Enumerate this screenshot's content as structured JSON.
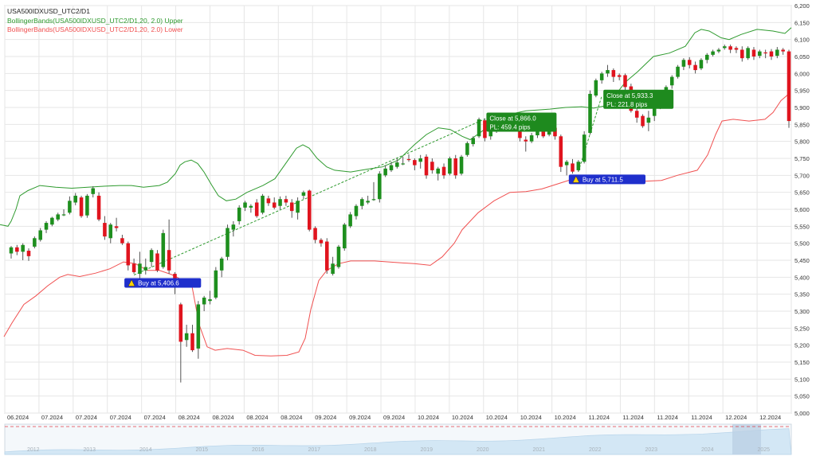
{
  "legend": {
    "symbol_title": "USA500IDXUSD_UTC2/D1",
    "upper_band_label": "BollingerBands(USA500IDXUSD_UTC2/D1,20, 2.0) Upper",
    "lower_band_label": "BollingerBands(USA500IDXUSD_UTC2/D1,20, 2.0) Lower"
  },
  "colors": {
    "bull": "#1e8f1e",
    "bear": "#e0141e",
    "upper_band": "#2e9a2e",
    "lower_band": "#f05050",
    "trade_line": "#2e9a2e",
    "buy_bg": "#1f2fcc",
    "close_bg": "#1e8a1e",
    "grid": "#e6e6e6"
  },
  "chart_data": {
    "type": "candlestick",
    "y_axis": {
      "min": 5000,
      "max": 6200,
      "step": 50,
      "labels": [
        "5,000",
        "5,050",
        "5,100",
        "5,150",
        "5,200",
        "5,250",
        "5,300",
        "5,350",
        "5,400",
        "5,450",
        "5,500",
        "5,550",
        "5,600",
        "5,650",
        "5,700",
        "5,750",
        "5,800",
        "5,850",
        "5,900",
        "5,950",
        "6,000",
        "6,050",
        "6,100",
        "6,150",
        "6,200"
      ]
    },
    "x_tick_labels": [
      "06.2024",
      "07.2024",
      "07.2024",
      "07.2024",
      "07.2024",
      "08.2024",
      "08.2024",
      "08.2024",
      "08.2024",
      "09.2024",
      "09.2024",
      "09.2024",
      "10.2024",
      "10.2024",
      "10.2024",
      "10.2024",
      "10.2024",
      "11.2024",
      "11.2024",
      "11.2024",
      "11.2024",
      "12.2024",
      "12.2024"
    ],
    "candles": [
      [
        5470,
        5488,
        5455,
        5492
      ],
      [
        5488,
        5475,
        5465,
        5495
      ],
      [
        5475,
        5495,
        5450,
        5500
      ],
      [
        5478,
        5462,
        5448,
        5485
      ],
      [
        5490,
        5515,
        5485,
        5520
      ],
      [
        5510,
        5538,
        5505,
        5545
      ],
      [
        5540,
        5560,
        5530,
        5565
      ],
      [
        5555,
        5575,
        5550,
        5578
      ],
      [
        5570,
        5585,
        5565,
        5590
      ],
      [
        5585,
        5585,
        5580,
        5600
      ],
      [
        5590,
        5625,
        5585,
        5638
      ],
      [
        5620,
        5640,
        5612,
        5648
      ],
      [
        5635,
        5580,
        5575,
        5640
      ],
      [
        5582,
        5640,
        5575,
        5645
      ],
      [
        5645,
        5662,
        5635,
        5668
      ],
      [
        5640,
        5570,
        5565,
        5650
      ],
      [
        5560,
        5520,
        5510,
        5580
      ],
      [
        5515,
        5555,
        5500,
        5560
      ],
      [
        5550,
        5545,
        5535,
        5575
      ],
      [
        5515,
        5500,
        5495,
        5525
      ],
      [
        5500,
        5435,
        5420,
        5505
      ],
      [
        5440,
        5415,
        5410,
        5455
      ],
      [
        5410,
        5440,
        5395,
        5475
      ],
      [
        5420,
        5430,
        5408,
        5455
      ],
      [
        5445,
        5480,
        5430,
        5485
      ],
      [
        5470,
        5420,
        5415,
        5480
      ],
      [
        5430,
        5530,
        5425,
        5540
      ],
      [
        5480,
        5420,
        5410,
        5570
      ],
      [
        5410,
        5375,
        5350,
        5415
      ],
      [
        5320,
        5210,
        5090,
        5325
      ],
      [
        5215,
        5235,
        5195,
        5260
      ],
      [
        5235,
        5185,
        5180,
        5260
      ],
      [
        5190,
        5320,
        5160,
        5330
      ],
      [
        5320,
        5340,
        5300,
        5345
      ],
      [
        5330,
        5335,
        5320,
        5360
      ],
      [
        5340,
        5420,
        5335,
        5430
      ],
      [
        5420,
        5455,
        5400,
        5460
      ],
      [
        5460,
        5545,
        5450,
        5555
      ],
      [
        5540,
        5555,
        5520,
        5565
      ],
      [
        5565,
        5605,
        5555,
        5612
      ],
      [
        5605,
        5620,
        5595,
        5625
      ],
      [
        5605,
        5610,
        5590,
        5615
      ],
      [
        5620,
        5580,
        5575,
        5630
      ],
      [
        5590,
        5640,
        5585,
        5645
      ],
      [
        5632,
        5618,
        5610,
        5640
      ],
      [
        5620,
        5605,
        5600,
        5635
      ],
      [
        5610,
        5630,
        5600,
        5638
      ],
      [
        5630,
        5620,
        5610,
        5640
      ],
      [
        5620,
        5595,
        5575,
        5630
      ],
      [
        5590,
        5625,
        5570,
        5635
      ],
      [
        5640,
        5650,
        5630,
        5655
      ],
      [
        5655,
        5540,
        5535,
        5658
      ],
      [
        5545,
        5510,
        5500,
        5550
      ],
      [
        5510,
        5500,
        5490,
        5515
      ],
      [
        5505,
        5420,
        5410,
        5515
      ],
      [
        5410,
        5440,
        5405,
        5460
      ],
      [
        5430,
        5490,
        5425,
        5495
      ],
      [
        5485,
        5555,
        5478,
        5560
      ],
      [
        5550,
        5585,
        5545,
        5592
      ],
      [
        5580,
        5610,
        5570,
        5615
      ],
      [
        5610,
        5630,
        5600,
        5635
      ],
      [
        5620,
        5625,
        5615,
        5640
      ],
      [
        5630,
        5630,
        5625,
        5680
      ],
      [
        5630,
        5705,
        5620,
        5712
      ],
      [
        5700,
        5720,
        5695,
        5730
      ],
      [
        5715,
        5730,
        5710,
        5740
      ],
      [
        5725,
        5738,
        5720,
        5750
      ],
      [
        5735,
        5735,
        5730,
        5755
      ],
      [
        5748,
        5745,
        5740,
        5762
      ],
      [
        5745,
        5730,
        5715,
        5750
      ],
      [
        5740,
        5750,
        5720,
        5760
      ],
      [
        5755,
        5700,
        5690,
        5762
      ],
      [
        5740,
        5715,
        5705,
        5750
      ],
      [
        5705,
        5720,
        5685,
        5725
      ],
      [
        5725,
        5700,
        5690,
        5735
      ],
      [
        5705,
        5750,
        5700,
        5755
      ],
      [
        5750,
        5700,
        5690,
        5760
      ],
      [
        5705,
        5755,
        5700,
        5760
      ],
      [
        5760,
        5795,
        5755,
        5800
      ],
      [
        5792,
        5810,
        5785,
        5815
      ],
      [
        5815,
        5865,
        5810,
        5870
      ],
      [
        5862,
        5810,
        5800,
        5868
      ],
      [
        5815,
        5840,
        5805,
        5848
      ],
      [
        5835,
        5845,
        5825,
        5850
      ],
      [
        5845,
        5870,
        5840,
        5875
      ],
      [
        5862,
        5860,
        5855,
        5870
      ],
      [
        5860,
        5850,
        5840,
        5868
      ],
      [
        5850,
        5810,
        5800,
        5862
      ],
      [
        5805,
        5800,
        5770,
        5815
      ],
      [
        5800,
        5818,
        5795,
        5825
      ],
      [
        5818,
        5840,
        5810,
        5845
      ],
      [
        5840,
        5815,
        5810,
        5850
      ],
      [
        5820,
        5840,
        5815,
        5848
      ],
      [
        5840,
        5815,
        5805,
        5848
      ],
      [
        5815,
        5725,
        5710,
        5820
      ],
      [
        5730,
        5740,
        5700,
        5745
      ],
      [
        5735,
        5711,
        5705,
        5748
      ],
      [
        5715,
        5740,
        5710,
        5745
      ],
      [
        5740,
        5820,
        5735,
        5830
      ],
      [
        5825,
        5940,
        5820,
        5950
      ],
      [
        5935,
        5980,
        5930,
        5985
      ],
      [
        5980,
        6000,
        5970,
        6005
      ],
      [
        6000,
        6010,
        5990,
        6025
      ],
      [
        6010,
        5990,
        5975,
        6015
      ],
      [
        5995,
        5990,
        5980,
        6000
      ],
      [
        5995,
        5960,
        5950,
        6000
      ],
      [
        5962,
        5890,
        5885,
        5970
      ],
      [
        5890,
        5870,
        5855,
        5900
      ],
      [
        5875,
        5845,
        5840,
        5880
      ],
      [
        5855,
        5870,
        5830,
        5890
      ],
      [
        5875,
        5900,
        5860,
        5905
      ],
      [
        5905,
        5930,
        5895,
        5935
      ],
      [
        5935,
        5960,
        5925,
        5965
      ],
      [
        5965,
        5990,
        5955,
        5995
      ],
      [
        5990,
        6020,
        5985,
        6025
      ],
      [
        6020,
        6040,
        6010,
        6045
      ],
      [
        6040,
        6025,
        6015,
        6048
      ],
      [
        6025,
        6010,
        6000,
        6035
      ],
      [
        6015,
        6040,
        6010,
        6045
      ],
      [
        6040,
        6055,
        6030,
        6060
      ],
      [
        6055,
        6065,
        6050,
        6070
      ],
      [
        6065,
        6070,
        6060,
        6075
      ],
      [
        6075,
        6080,
        6070,
        6085
      ],
      [
        6080,
        6070,
        6060,
        6085
      ],
      [
        6075,
        6070,
        6060,
        6080
      ],
      [
        6070,
        6045,
        6035,
        6080
      ],
      [
        6045,
        6075,
        6040,
        6080
      ],
      [
        6070,
        6050,
        6040,
        6078
      ],
      [
        6052,
        6065,
        6045,
        6070
      ],
      [
        6062,
        6060,
        6045,
        6070
      ],
      [
        6065,
        6050,
        6040,
        6072
      ],
      [
        6052,
        6070,
        6045,
        6078
      ],
      [
        6070,
        6065,
        6055,
        6075
      ],
      [
        6065,
        5860,
        5840,
        6070
      ]
    ],
    "upper_band": [
      [
        0,
        5555
      ],
      [
        10,
        5550
      ],
      [
        14,
        5565
      ],
      [
        20,
        5600
      ],
      [
        25,
        5640
      ],
      [
        35,
        5655
      ],
      [
        50,
        5670
      ],
      [
        70,
        5665
      ],
      [
        90,
        5662
      ],
      [
        110,
        5665
      ],
      [
        130,
        5668
      ],
      [
        150,
        5670
      ],
      [
        165,
        5670
      ],
      [
        180,
        5665
      ],
      [
        200,
        5670
      ],
      [
        210,
        5680
      ],
      [
        220,
        5705
      ],
      [
        226,
        5730
      ],
      [
        232,
        5740
      ],
      [
        240,
        5745
      ],
      [
        248,
        5735
      ],
      [
        256,
        5710
      ],
      [
        266,
        5670
      ],
      [
        274,
        5640
      ],
      [
        284,
        5625
      ],
      [
        296,
        5630
      ],
      [
        310,
        5650
      ],
      [
        330,
        5670
      ],
      [
        345,
        5690
      ],
      [
        360,
        5740
      ],
      [
        372,
        5780
      ],
      [
        380,
        5790
      ],
      [
        388,
        5780
      ],
      [
        398,
        5750
      ],
      [
        410,
        5725
      ],
      [
        420,
        5715
      ],
      [
        440,
        5710
      ],
      [
        460,
        5718
      ],
      [
        480,
        5725
      ],
      [
        500,
        5745
      ],
      [
        520,
        5790
      ],
      [
        535,
        5820
      ],
      [
        550,
        5840
      ],
      [
        565,
        5835
      ],
      [
        580,
        5815
      ],
      [
        590,
        5805
      ],
      [
        605,
        5830
      ],
      [
        620,
        5860
      ],
      [
        640,
        5880
      ],
      [
        660,
        5890
      ],
      [
        690,
        5895
      ],
      [
        710,
        5900
      ],
      [
        730,
        5902
      ],
      [
        745,
        5898
      ],
      [
        760,
        5905
      ],
      [
        775,
        5945
      ],
      [
        785,
        5975
      ],
      [
        800,
        6005
      ],
      [
        820,
        6050
      ],
      [
        840,
        6060
      ],
      [
        860,
        6080
      ],
      [
        872,
        6120
      ],
      [
        880,
        6130
      ],
      [
        890,
        6125
      ],
      [
        905,
        6105
      ],
      [
        915,
        6100
      ],
      [
        930,
        6115
      ],
      [
        950,
        6130
      ],
      [
        970,
        6125
      ],
      [
        985,
        6118
      ],
      [
        993,
        6135
      ]
    ],
    "lower_band": [
      [
        5,
        5225
      ],
      [
        15,
        5265
      ],
      [
        30,
        5320
      ],
      [
        45,
        5345
      ],
      [
        60,
        5375
      ],
      [
        75,
        5400
      ],
      [
        85,
        5408
      ],
      [
        100,
        5402
      ],
      [
        120,
        5412
      ],
      [
        138,
        5425
      ],
      [
        155,
        5445
      ],
      [
        170,
        5440
      ],
      [
        185,
        5420
      ],
      [
        200,
        5420
      ],
      [
        215,
        5408
      ],
      [
        222,
        5400
      ],
      [
        230,
        5390
      ],
      [
        240,
        5385
      ],
      [
        250,
        5260
      ],
      [
        260,
        5195
      ],
      [
        270,
        5185
      ],
      [
        285,
        5190
      ],
      [
        305,
        5185
      ],
      [
        320,
        5170
      ],
      [
        340,
        5168
      ],
      [
        360,
        5170
      ],
      [
        375,
        5180
      ],
      [
        383,
        5220
      ],
      [
        390,
        5305
      ],
      [
        400,
        5390
      ],
      [
        410,
        5420
      ],
      [
        425,
        5440
      ],
      [
        440,
        5448
      ],
      [
        470,
        5448
      ],
      [
        500,
        5443
      ],
      [
        520,
        5440
      ],
      [
        540,
        5435
      ],
      [
        555,
        5460
      ],
      [
        570,
        5500
      ],
      [
        580,
        5540
      ],
      [
        600,
        5590
      ],
      [
        620,
        5625
      ],
      [
        640,
        5650
      ],
      [
        660,
        5652
      ],
      [
        680,
        5660
      ],
      [
        700,
        5675
      ],
      [
        720,
        5690
      ],
      [
        740,
        5700
      ],
      [
        760,
        5695
      ],
      [
        775,
        5690
      ],
      [
        790,
        5680
      ],
      [
        810,
        5683
      ],
      [
        830,
        5685
      ],
      [
        850,
        5700
      ],
      [
        875,
        5715
      ],
      [
        888,
        5760
      ],
      [
        898,
        5820
      ],
      [
        906,
        5860
      ],
      [
        920,
        5865
      ],
      [
        940,
        5860
      ],
      [
        960,
        5865
      ],
      [
        970,
        5885
      ],
      [
        980,
        5920
      ],
      [
        990,
        5940
      ]
    ],
    "trades": [
      {
        "type": "buy",
        "label": "Buy at 5,406.6",
        "price": 5406.6,
        "candle": 21
      },
      {
        "type": "close",
        "label1": "Close at 5,866.0",
        "label2": "PL: 459.4 pips",
        "price": 5866.0,
        "candle": 81
      },
      {
        "type": "buy",
        "label": "Buy at 5,711.5",
        "price": 5711.5,
        "candle": 97
      },
      {
        "type": "close",
        "label1": "Close at 5,933.3",
        "label2": "PL: 221.8 pips",
        "price": 5933.3,
        "candle": 101
      }
    ],
    "navigator_year_labels": [
      "2012",
      "2013",
      "2014",
      "2015",
      "2016",
      "2017",
      "2018",
      "2019",
      "2020",
      "2021",
      "2022",
      "2023",
      "2024",
      "2025"
    ]
  }
}
